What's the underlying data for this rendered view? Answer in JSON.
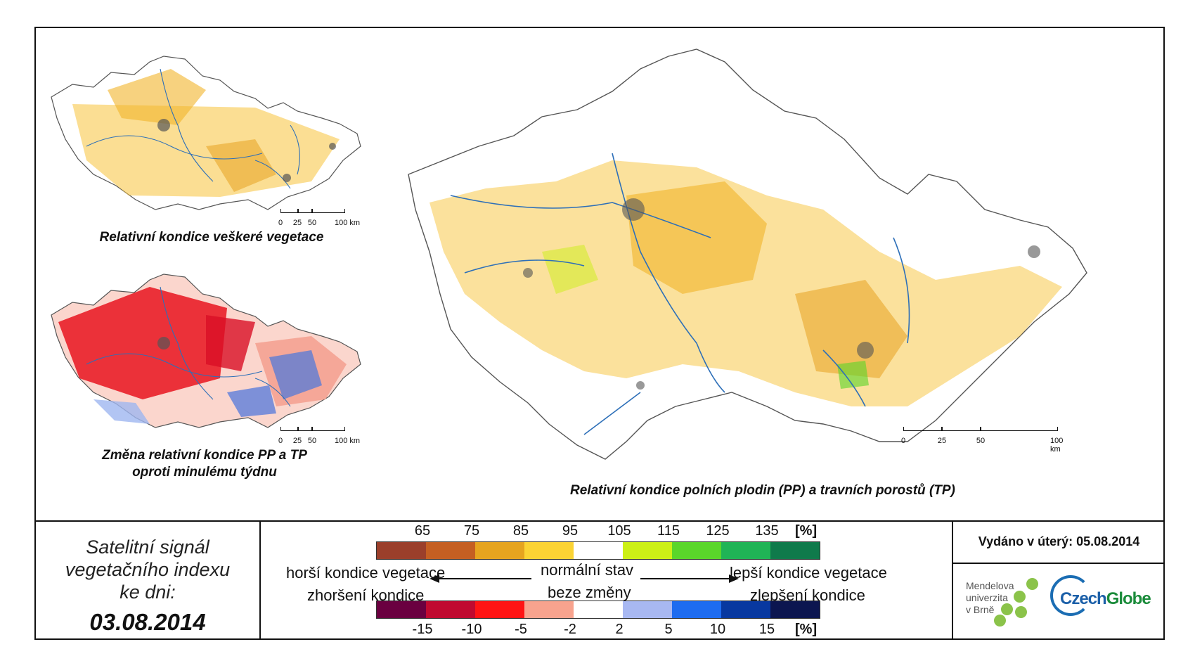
{
  "maps": {
    "top_left_caption": "Relativní kondice veškeré vegetace",
    "bottom_left_caption_line1": "Změna relativní kondice PP a TP",
    "bottom_left_caption_line2": "oproti minulému týdnu",
    "main_caption": "Relativní kondice polních plodin (PP) a travních porostů (TP)",
    "scale_small_ticks": [
      "0",
      "25",
      "50",
      "100 km"
    ],
    "scale_large_ticks": [
      "0",
      "25",
      "50",
      "100 km"
    ]
  },
  "date_box": {
    "line1": "Satelitní signál",
    "line2": "vegetačního indexu",
    "line3": "ke dni:",
    "date": "03.08.2014"
  },
  "legend": {
    "condition_ticks": [
      "65",
      "75",
      "85",
      "95",
      "105",
      "115",
      "125",
      "135"
    ],
    "condition_unit": "[%]",
    "condition_colors": [
      "#9b3f2b",
      "#c55f22",
      "#e6a41f",
      "#fbd334",
      "#ffffff",
      "#ccf016",
      "#5ad62a",
      "#20b456",
      "#0f7a4b"
    ],
    "change_ticks": [
      "-15",
      "-10",
      "-5",
      "-2",
      "2",
      "5",
      "10",
      "15"
    ],
    "change_unit": "[%]",
    "change_colors": [
      "#6a0040",
      "#c00a30",
      "#ff1414",
      "#f8a38e",
      "#ffffff",
      "#a8b8f2",
      "#1e6cf0",
      "#0838a0",
      "#0c1650"
    ],
    "worse_condition": "horší kondice vegetace",
    "worse_change": "zhoršení kondice",
    "normal_state": "normální stav",
    "no_change": "beze změny",
    "better_condition": "lepší kondice vegetace",
    "better_change": "zlepšení kondice"
  },
  "issue": {
    "issued": "Vydáno v úterý: 05.08.2014",
    "mendel_line1": "Mendelova",
    "mendel_line2": "univerzita",
    "mendel_line3": "v Brně",
    "czechglobe_part1": "Czech",
    "czechglobe_part2": "Globe"
  }
}
